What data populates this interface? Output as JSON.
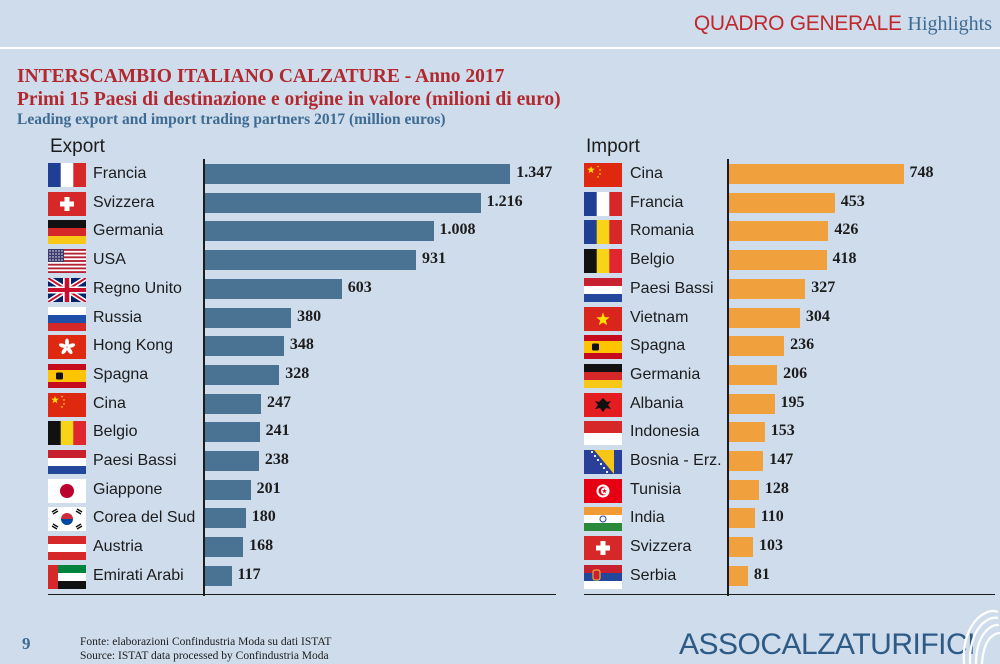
{
  "header": {
    "section": "QUADRO GENERALE",
    "sub": "Highlights"
  },
  "title": "INTERSCAMBIO ITALIANO CALZATURE - Anno 2017",
  "subtitle": "Primi 15 Paesi di destinazione e origine in valore (milioni di euro)",
  "subtitle_en": "Leading export and import trading partners 2017 (million euros)",
  "colors": {
    "export_bar": "#4a7293",
    "import_bar": "#f0a03c"
  },
  "chart_data": [
    {
      "type": "bar",
      "orientation": "horizontal",
      "title": "Export",
      "categories": [
        "Francia",
        "Svizzera",
        "Germania",
        "USA",
        "Regno Unito",
        "Russia",
        "Hong Kong",
        "Spagna",
        "Cina",
        "Belgio",
        "Paesi Bassi",
        "Giappone",
        "Corea del Sud",
        "Austria",
        "Emirati Arabi"
      ],
      "flags": [
        "fr",
        "ch",
        "de",
        "us",
        "gb",
        "ru",
        "hk",
        "es",
        "cn",
        "be",
        "nl",
        "jp",
        "kr",
        "at",
        "ae"
      ],
      "values": [
        1347,
        1216,
        1008,
        931,
        603,
        380,
        348,
        328,
        247,
        241,
        238,
        201,
        180,
        168,
        117
      ],
      "labels": [
        "1.347",
        "1.216",
        "1.008",
        "931",
        "603",
        "380",
        "348",
        "328",
        "247",
        "241",
        "238",
        "201",
        "180",
        "168",
        "117"
      ],
      "xlim": [
        0,
        1350
      ],
      "grid": false,
      "legend": "none"
    },
    {
      "type": "bar",
      "orientation": "horizontal",
      "title": "Import",
      "categories": [
        "Cina",
        "Francia",
        "Romania",
        "Belgio",
        "Paesi Bassi",
        "Vietnam",
        "Spagna",
        "Germania",
        "Albania",
        "Indonesia",
        "Bosnia - Erz.",
        "Tunisia",
        "India",
        "Svizzera",
        "Serbia"
      ],
      "flags": [
        "cn",
        "fr",
        "ro",
        "be",
        "nl",
        "vn",
        "es",
        "de",
        "al",
        "id",
        "ba",
        "tn",
        "in",
        "ch",
        "rs"
      ],
      "values": [
        748,
        453,
        426,
        418,
        327,
        304,
        236,
        206,
        195,
        153,
        147,
        128,
        110,
        103,
        81
      ],
      "labels": [
        "748",
        "453",
        "426",
        "418",
        "327",
        "304",
        "236",
        "206",
        "195",
        "153",
        "147",
        "128",
        "110",
        "103",
        "81"
      ],
      "xlim": [
        0,
        750
      ],
      "grid": false,
      "legend": "none"
    }
  ],
  "footer": {
    "page": "9",
    "source_it": "Fonte: elaborazioni Confindustria Moda su dati ISTAT",
    "source_en": "Source: ISTAT data processed by Confindustria Moda",
    "brand": "ASSOCALZATURIFICI"
  }
}
